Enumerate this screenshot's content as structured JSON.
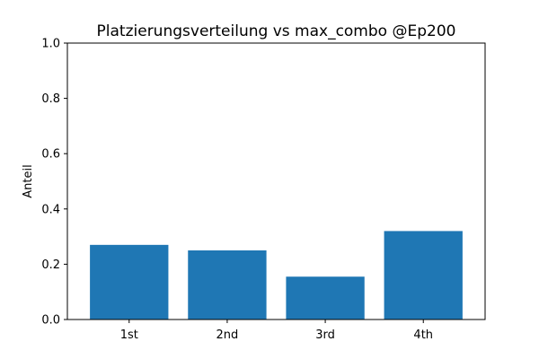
{
  "chart_data": {
    "type": "bar",
    "title": "Platzierungsverteilung vs max_combo @Ep200",
    "xlabel": "",
    "ylabel": "Anteil",
    "categories": [
      "1st",
      "2nd",
      "3rd",
      "4th"
    ],
    "values": [
      0.27,
      0.25,
      0.155,
      0.32
    ],
    "ylim": [
      0,
      1.0
    ],
    "yticks": [
      "0.0",
      "0.2",
      "0.4",
      "0.6",
      "0.8",
      "1.0"
    ],
    "grid": false,
    "legend": "none",
    "bar_color": "#1f77b4"
  }
}
